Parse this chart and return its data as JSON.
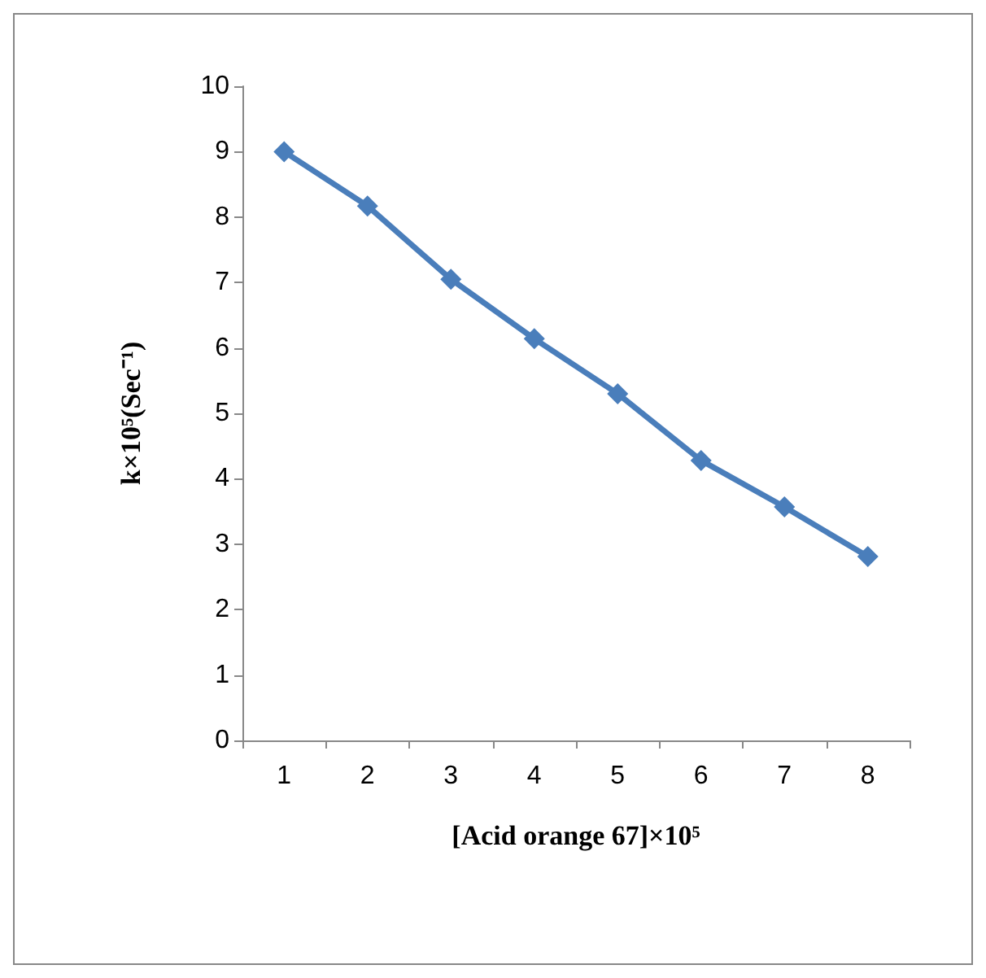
{
  "chart_data": {
    "type": "line",
    "xlabel": "[Acid orange 67]×10⁵",
    "ylabel": "k×10⁵(Sec⁻¹)",
    "categories": [
      "1",
      "2",
      "3",
      "4",
      "5",
      "6",
      "7",
      "8"
    ],
    "series": [
      {
        "color": "#4a7ebb",
        "values": [
          9.0,
          8.17,
          7.05,
          6.14,
          5.3,
          4.28,
          3.57,
          2.81
        ]
      }
    ],
    "ylim": [
      0,
      10
    ],
    "yticks": [
      0,
      1,
      2,
      3,
      4,
      5,
      6,
      7,
      8,
      9,
      10
    ],
    "grid": false,
    "marker": "diamond",
    "line_style": "solid"
  }
}
